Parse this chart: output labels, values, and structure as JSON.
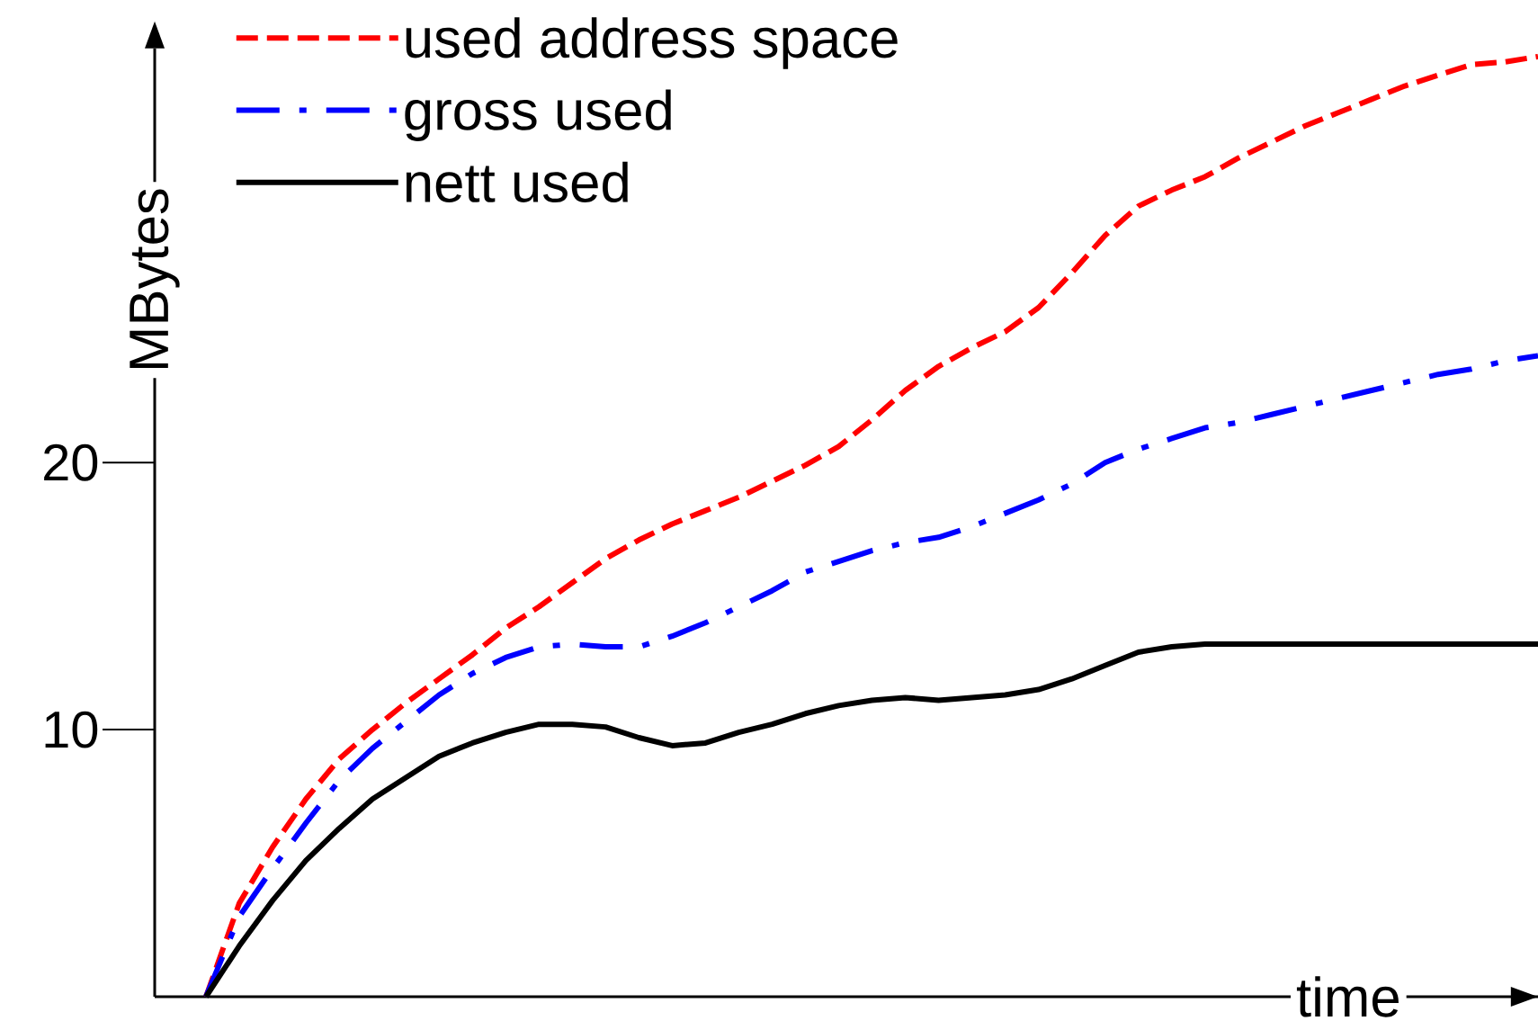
{
  "chart_data": {
    "type": "line",
    "xlabel": "time",
    "ylabel": "MBytes",
    "categories": [
      null,
      null,
      null,
      null,
      null,
      null,
      null,
      null,
      null,
      null,
      null,
      null,
      null,
      null,
      null,
      null,
      null,
      null,
      null,
      null,
      null,
      null,
      null,
      null,
      null,
      null,
      null,
      null,
      null,
      null,
      null,
      null,
      null,
      null,
      null,
      null,
      null,
      null,
      null,
      null,
      null
    ],
    "ylim": [
      0,
      35.5
    ],
    "yticks": [
      10,
      20
    ],
    "legend": "top left",
    "marker": "none",
    "series": [
      {
        "name": "used address space",
        "color": "#ff0000",
        "line_style": "dashed",
        "values": [
          0,
          3.5,
          5.6,
          7.4,
          8.9,
          10.0,
          11.0,
          11.9,
          12.8,
          13.8,
          14.6,
          15.5,
          16.4,
          17.1,
          17.7,
          18.2,
          18.7,
          19.3,
          19.9,
          20.6,
          21.6,
          22.7,
          23.6,
          24.3,
          24.9,
          25.8,
          27.1,
          28.5,
          29.6,
          30.2,
          30.7,
          31.4,
          32.0,
          32.6,
          33.1,
          33.6,
          34.1,
          34.5,
          34.9,
          35.0,
          35.2
        ]
      },
      {
        "name": "gross used",
        "color": "#0000ff",
        "line_style": "dashdot",
        "values": [
          0,
          3.0,
          4.8,
          6.5,
          8.1,
          9.3,
          10.3,
          11.3,
          12.1,
          12.7,
          13.1,
          13.2,
          13.1,
          13.1,
          13.5,
          14.0,
          14.6,
          15.2,
          15.9,
          16.3,
          16.7,
          17.0,
          17.2,
          17.6,
          18.1,
          18.6,
          19.2,
          20.0,
          20.5,
          20.9,
          21.3,
          21.5,
          21.8,
          22.1,
          22.4,
          22.7,
          23.0,
          23.3,
          23.5,
          23.8,
          24.0
        ]
      },
      {
        "name": "nett used",
        "color": "#000000",
        "line_style": "solid",
        "values": [
          0,
          1.9,
          3.6,
          5.1,
          6.3,
          7.4,
          8.2,
          9.0,
          9.5,
          9.9,
          10.2,
          10.2,
          10.1,
          9.7,
          9.4,
          9.5,
          9.9,
          10.2,
          10.6,
          10.9,
          11.1,
          11.2,
          11.1,
          11.2,
          11.3,
          11.5,
          11.9,
          12.4,
          12.9,
          13.1,
          13.2,
          13.2,
          13.2,
          13.2,
          13.2,
          13.2,
          13.2,
          13.2,
          13.2,
          13.2,
          13.2
        ]
      }
    ]
  }
}
